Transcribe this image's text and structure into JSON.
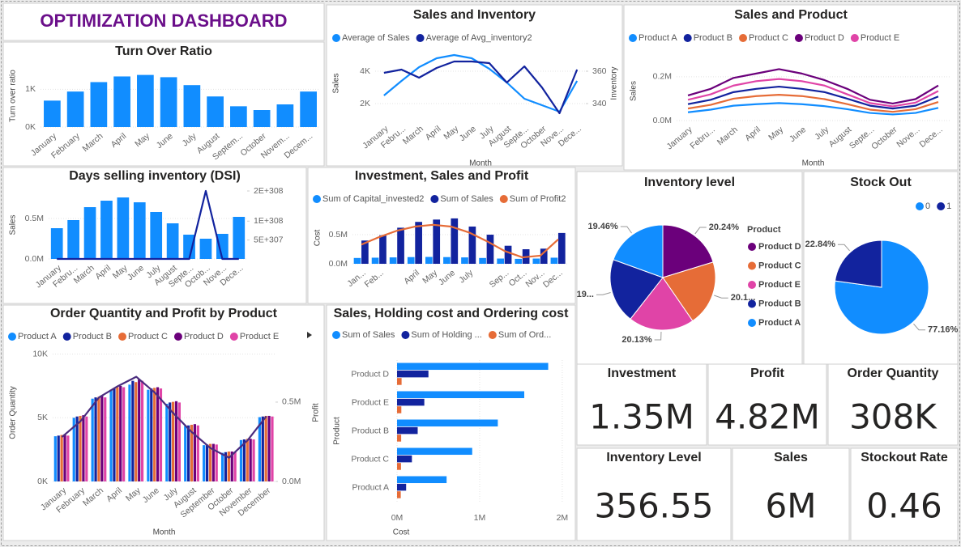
{
  "header": {
    "title": "OPTIMIZATION DASHBOARD"
  },
  "chart_data": [
    {
      "type": "bar",
      "title": "Turn Over Ratio",
      "ylabel": "Turn over ratio",
      "categories": [
        "January",
        "February",
        "March",
        "April",
        "May",
        "June",
        "July",
        "August",
        "Septem...",
        "October",
        "Novem...",
        "Decem..."
      ],
      "series": [
        {
          "color": "#118dff",
          "values": [
            700,
            940,
            1190,
            1340,
            1380,
            1320,
            1110,
            810,
            550,
            450,
            600,
            940
          ]
        }
      ],
      "ylim": [
        0,
        1650
      ],
      "yticks": [
        {
          "value": 0,
          "label": "0K"
        },
        {
          "value": 1000,
          "label": "1K"
        }
      ],
      "grid": true
    },
    {
      "type": "line",
      "title": "Sales and Inventory",
      "xlabel": "Month",
      "ylabel": "Sales",
      "y2label": "Inventory",
      "categories": [
        "January",
        "Febru...",
        "March",
        "April",
        "May",
        "June",
        "July",
        "August",
        "Septe...",
        "October",
        "Nove...",
        "Dece..."
      ],
      "series": [
        {
          "name": "Average of Sales",
          "color": "#118dff",
          "values": [
            2500,
            3400,
            4250,
            4800,
            5000,
            4800,
            4150,
            3300,
            2300,
            1900,
            1500,
            3400
          ]
        },
        {
          "name": "Average of Avg_inventory2",
          "color": "#12239e",
          "axis": "y2",
          "values": [
            359,
            361,
            356,
            362,
            366,
            366,
            365,
            353,
            363,
            350,
            334,
            361
          ]
        }
      ],
      "ylim": [
        1000,
        5500
      ],
      "yticks": [
        {
          "value": 2000,
          "label": "2K"
        },
        {
          "value": 4000,
          "label": "4K"
        }
      ],
      "y2lim": [
        330,
        375
      ],
      "y2ticks": [
        340,
        360
      ],
      "grid": true
    },
    {
      "type": "line",
      "title": "Sales and Product",
      "xlabel": "Month",
      "ylabel": "Sales",
      "categories": [
        "January",
        "Febru...",
        "March",
        "April",
        "May",
        "June",
        "July",
        "August",
        "Septe...",
        "October",
        "Nove...",
        "Dece..."
      ],
      "series": [
        {
          "name": "Product A",
          "color": "#118dff",
          "values": [
            38000,
            50000,
            68000,
            75000,
            80000,
            75000,
            66000,
            52000,
            35000,
            28000,
            35000,
            58000
          ]
        },
        {
          "name": "Product B",
          "color": "#12239e",
          "values": [
            75000,
            95000,
            130000,
            145000,
            155000,
            145000,
            130000,
            100000,
            68000,
            55000,
            68000,
            110000
          ]
        },
        {
          "name": "Product C",
          "color": "#e66c37",
          "values": [
            55000,
            72000,
            100000,
            112000,
            118000,
            112000,
            98000,
            75000,
            50000,
            40000,
            52000,
            85000
          ]
        },
        {
          "name": "Product D",
          "color": "#6b007b",
          "values": [
            115000,
            145000,
            195000,
            215000,
            235000,
            215000,
            185000,
            145000,
            95000,
            78000,
            98000,
            160000
          ]
        },
        {
          "name": "Product E",
          "color": "#e044a7",
          "values": [
            95000,
            120000,
            160000,
            180000,
            190000,
            180000,
            160000,
            120000,
            80000,
            65000,
            82000,
            135000
          ]
        }
      ],
      "ylim": [
        0,
        270000
      ],
      "yticks": [
        {
          "value": 0,
          "label": "0.0M"
        },
        {
          "value": 200000,
          "label": "0.2M"
        }
      ],
      "grid": true
    },
    {
      "type": "combo",
      "title": "Days selling inventory (DSI)",
      "ylabel": "Sales",
      "categories": [
        "January",
        "Febru...",
        "March",
        "April",
        "May",
        "June",
        "July",
        "August",
        "Septe...",
        "Octob...",
        "Nove...",
        "Dece..."
      ],
      "series": [
        {
          "type": "bar",
          "color": "#118dff",
          "values": [
            380000,
            480000,
            640000,
            720000,
            760000,
            700000,
            580000,
            440000,
            300000,
            250000,
            310000,
            520000
          ]
        },
        {
          "type": "line",
          "axis": "y2",
          "color": "#12239e",
          "values": [
            0,
            0,
            0,
            0,
            0,
            0,
            0,
            0,
            0,
            1.7976931348623157e+308,
            0,
            0
          ]
        }
      ],
      "ylim": [
        0,
        840000
      ],
      "yticks": [
        {
          "value": 0,
          "label": "0.0M"
        },
        {
          "value": 500000,
          "label": "0.5M"
        }
      ],
      "y2lim": [
        0,
        1.7976931348623157e+308
      ],
      "y2ticks": [
        {
          "value": 5e+307,
          "label": "5E+307"
        },
        {
          "value": 1e+308,
          "label": "1E+308"
        },
        {
          "value": 1.7976931348623157e+308,
          "label": "2E+308"
        }
      ],
      "grid": true
    },
    {
      "type": "combo",
      "title": "Investment, Sales and Profit",
      "ylabel": "Cost",
      "categories": [
        "Jan...",
        "Feb...",
        null,
        "April",
        "May",
        "June",
        "July",
        null,
        "Sep...",
        "Oct...",
        "Nov...",
        "Dec..."
      ],
      "series": [
        {
          "name": "Sum of Capital_invested2",
          "type": "bar",
          "color": "#118dff",
          "values": [
            100000,
            105000,
            110000,
            115000,
            118000,
            115000,
            110000,
            100000,
            90000,
            85000,
            90000,
            105000
          ]
        },
        {
          "name": "Sum of Sales",
          "type": "bar",
          "color": "#12239e",
          "values": [
            400000,
            490000,
            620000,
            720000,
            760000,
            780000,
            640000,
            500000,
            310000,
            250000,
            260000,
            530000
          ]
        },
        {
          "name": "Sum of Profit2",
          "type": "line",
          "color": "#e66c37",
          "values": [
            330000,
            460000,
            570000,
            640000,
            670000,
            640000,
            540000,
            390000,
            220000,
            110000,
            140000,
            420000
          ]
        }
      ],
      "ylim": [
        0,
        890000
      ],
      "yticks": [
        {
          "value": 0,
          "label": "0.0M"
        },
        {
          "value": 500000,
          "label": "0.5M"
        }
      ],
      "grid": true
    },
    {
      "type": "pie",
      "title": "Inventory level",
      "legend_title": "Product",
      "legend": "right",
      "categories": [
        "Product D",
        "Product C",
        "Product E",
        "Product B",
        "Product A"
      ],
      "values": [
        20.24,
        20.18,
        20.13,
        19.99,
        19.46
      ],
      "value_labels": [
        "20.24%",
        "20.1...",
        "20.13%",
        "19...",
        "19.46%"
      ],
      "colors": [
        "#6b007b",
        "#e66c37",
        "#e044a7",
        "#12239e",
        "#118dff"
      ]
    },
    {
      "type": "pie",
      "title": "Stock Out",
      "legend": "top",
      "categories": [
        "0",
        "1"
      ],
      "values": [
        77.16,
        22.84
      ],
      "value_labels": [
        "77.16%",
        "22.84%"
      ],
      "colors": [
        "#118dff",
        "#12239e"
      ]
    },
    {
      "type": "combo",
      "title": "Order Quantity and Profit by Product",
      "xlabel": "Month",
      "ylabel": "Order Quantity",
      "y2label": "Profit",
      "categories": [
        "January",
        "February",
        "March",
        "April",
        "May",
        "June",
        "July",
        "August",
        "September",
        "October",
        "November",
        "December"
      ],
      "series": [
        {
          "name": "Product A",
          "type": "bar",
          "color": "#118dff",
          "values": [
            3550,
            5000,
            6500,
            7200,
            7600,
            7200,
            6100,
            4350,
            2850,
            2250,
            3250,
            5050
          ]
        },
        {
          "name": "Product B",
          "type": "bar",
          "color": "#12239e",
          "values": [
            3600,
            5100,
            6600,
            7300,
            7900,
            7300,
            6200,
            4400,
            2900,
            2300,
            3300,
            5100
          ]
        },
        {
          "name": "Product C",
          "type": "bar",
          "color": "#e66c37",
          "values": [
            3650,
            5150,
            6650,
            7400,
            7800,
            7350,
            6250,
            4450,
            2950,
            2350,
            3350,
            5150
          ]
        },
        {
          "name": "Product D",
          "type": "bar",
          "color": "#6b007b",
          "values": [
            3700,
            5200,
            6700,
            7500,
            8000,
            7400,
            6300,
            4500,
            2950,
            2350,
            3350,
            5150
          ]
        },
        {
          "name": "Product E",
          "type": "bar",
          "color": "#e044a7",
          "values": [
            3600,
            5100,
            6600,
            7400,
            7900,
            7300,
            6200,
            4400,
            2900,
            2300,
            3300,
            5100
          ]
        },
        {
          "type": "line",
          "axis": "y2",
          "color": "#4b2d7f",
          "values": [
            280000,
            380000,
            530000,
            600000,
            660000,
            560000,
            430000,
            310000,
            210000,
            150000,
            260000,
            410000
          ]
        }
      ],
      "ylim": [
        0,
        10800
      ],
      "yticks": [
        {
          "value": 0,
          "label": "0K"
        },
        {
          "value": 5000,
          "label": "5K"
        },
        {
          "value": 10000,
          "label": "10K"
        }
      ],
      "y2lim": [
        0,
        867000
      ],
      "y2ticks": [
        {
          "value": 0,
          "label": "0.0M"
        },
        {
          "value": 500000,
          "label": "0.5M"
        }
      ],
      "grid": true
    },
    {
      "type": "hbar",
      "title": "Sales, Holding cost and Ordering cost",
      "xlabel": "Cost",
      "ylabel": "Product",
      "categories": [
        "Product D",
        "Product E",
        "Product B",
        "Product C",
        "Product A"
      ],
      "series": [
        {
          "name": "Sum of Sales",
          "color": "#118dff",
          "values": [
            1830000,
            1540000,
            1220000,
            910000,
            600000
          ]
        },
        {
          "name": "Sum of Holding ...",
          "color": "#12239e",
          "values": [
            380000,
            330000,
            250000,
            180000,
            110000
          ]
        },
        {
          "name": "Sum of Ord...",
          "color": "#e66c37",
          "values": [
            55000,
            52000,
            50000,
            48000,
            45000
          ]
        }
      ],
      "xlim": [
        0,
        2060000
      ],
      "xticks": [
        {
          "value": 0,
          "label": "0M"
        },
        {
          "value": 1000000,
          "label": "1M"
        },
        {
          "value": 2000000,
          "label": "2M"
        }
      ],
      "grid": true
    }
  ],
  "cards": [
    {
      "title": "Investment",
      "value": "1.35M"
    },
    {
      "title": "Profit",
      "value": "4.82M"
    },
    {
      "title": "Order Quantity",
      "value": "308K"
    },
    {
      "title": "Inventory Level",
      "value": 356.55
    },
    {
      "title": "Sales",
      "value": "6M"
    },
    {
      "title": "Stockout Rate",
      "value": 0.46
    }
  ]
}
